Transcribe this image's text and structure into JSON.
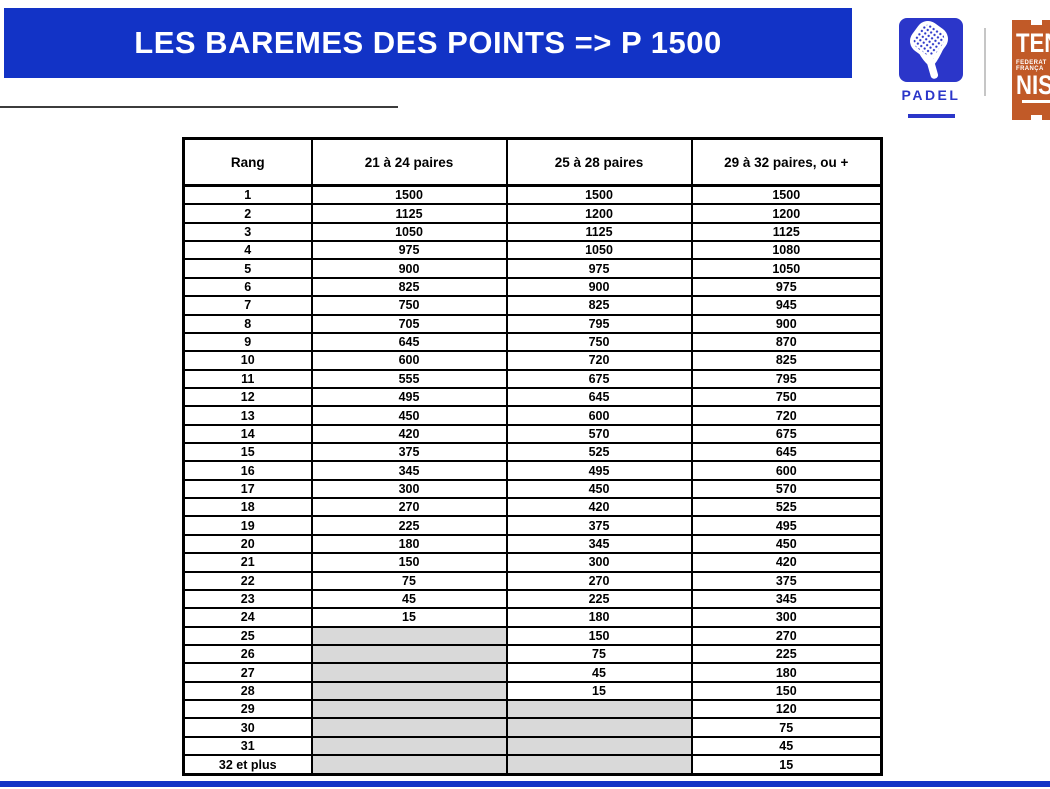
{
  "banner": {
    "title": "LES BAREMES DES POINTS => P 1500"
  },
  "logos": {
    "padel": {
      "label": "PADEL"
    },
    "fft": {
      "word_top": "TEN",
      "word_bottom": "NIS",
      "small_line1": "FEDERAT",
      "small_line2": "FRANÇA"
    }
  },
  "colors": {
    "banner_blue": "#1233C6",
    "padel_blue": "#2B36C9",
    "fft_orange": "#C15A28",
    "gray_cell": "#D9D9D9"
  },
  "table": {
    "headers": [
      "Rang",
      "21 à 24 paires",
      "25 à 28 paires",
      "29 à 32 paires, ou +"
    ],
    "rows": [
      {
        "rank": "1",
        "v1": "1500",
        "v2": "1500",
        "v3": "1500"
      },
      {
        "rank": "2",
        "v1": "1125",
        "v2": "1200",
        "v3": "1200"
      },
      {
        "rank": "3",
        "v1": "1050",
        "v2": "1125",
        "v3": "1125"
      },
      {
        "rank": "4",
        "v1": "975",
        "v2": "1050",
        "v3": "1080"
      },
      {
        "rank": "5",
        "v1": "900",
        "v2": "975",
        "v3": "1050"
      },
      {
        "rank": "6",
        "v1": "825",
        "v2": "900",
        "v3": "975"
      },
      {
        "rank": "7",
        "v1": "750",
        "v2": "825",
        "v3": "945"
      },
      {
        "rank": "8",
        "v1": "705",
        "v2": "795",
        "v3": "900"
      },
      {
        "rank": "9",
        "v1": "645",
        "v2": "750",
        "v3": "870"
      },
      {
        "rank": "10",
        "v1": "600",
        "v2": "720",
        "v3": "825"
      },
      {
        "rank": "11",
        "v1": "555",
        "v2": "675",
        "v3": "795"
      },
      {
        "rank": "12",
        "v1": "495",
        "v2": "645",
        "v3": "750"
      },
      {
        "rank": "13",
        "v1": "450",
        "v2": "600",
        "v3": "720"
      },
      {
        "rank": "14",
        "v1": "420",
        "v2": "570",
        "v3": "675"
      },
      {
        "rank": "15",
        "v1": "375",
        "v2": "525",
        "v3": "645"
      },
      {
        "rank": "16",
        "v1": "345",
        "v2": "495",
        "v3": "600"
      },
      {
        "rank": "17",
        "v1": "300",
        "v2": "450",
        "v3": "570"
      },
      {
        "rank": "18",
        "v1": "270",
        "v2": "420",
        "v3": "525"
      },
      {
        "rank": "19",
        "v1": "225",
        "v2": "375",
        "v3": "495"
      },
      {
        "rank": "20",
        "v1": "180",
        "v2": "345",
        "v3": "450"
      },
      {
        "rank": "21",
        "v1": "150",
        "v2": "300",
        "v3": "420"
      },
      {
        "rank": "22",
        "v1": "75",
        "v2": "270",
        "v3": "375"
      },
      {
        "rank": "23",
        "v1": "45",
        "v2": "225",
        "v3": "345"
      },
      {
        "rank": "24",
        "v1": "15",
        "v2": "180",
        "v3": "300"
      },
      {
        "rank": "25",
        "v1": null,
        "v2": "150",
        "v3": "270"
      },
      {
        "rank": "26",
        "v1": null,
        "v2": "75",
        "v3": "225"
      },
      {
        "rank": "27",
        "v1": null,
        "v2": "45",
        "v3": "180"
      },
      {
        "rank": "28",
        "v1": null,
        "v2": "15",
        "v3": "150"
      },
      {
        "rank": "29",
        "v1": null,
        "v2": null,
        "v3": "120"
      },
      {
        "rank": "30",
        "v1": null,
        "v2": null,
        "v3": "75"
      },
      {
        "rank": "31",
        "v1": null,
        "v2": null,
        "v3": "45"
      },
      {
        "rank": "32 et plus",
        "v1": null,
        "v2": null,
        "v3": "15"
      }
    ]
  }
}
